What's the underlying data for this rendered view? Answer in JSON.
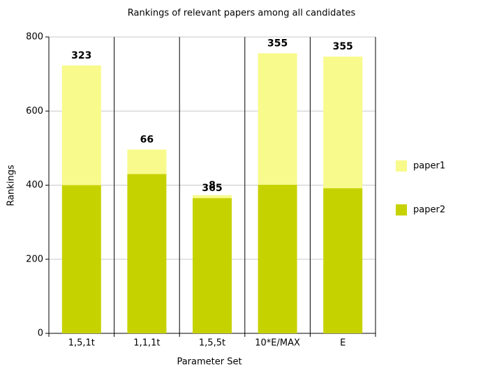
{
  "chart_data": {
    "type": "stacked-bar",
    "title": "Rankings of relevant papers among all candidates",
    "x_label": "Parameter Set",
    "y_label": "Rankings",
    "categories": [
      "1,5,1t",
      "1,1,1t",
      "1,5,5t",
      "10*E/MAX",
      "E"
    ],
    "series": [
      {
        "name": "paper1",
        "color": "#f8fa8c",
        "values": [
          323,
          66,
          8,
          355,
          355
        ]
      },
      {
        "name": "paper2",
        "color": "#c6d200",
        "values": [
          400,
          430,
          365,
          401,
          392
        ]
      }
    ],
    "ylim": [
      0,
      800
    ],
    "yticks": [
      0,
      200,
      400,
      600,
      800
    ],
    "grid": true
  }
}
